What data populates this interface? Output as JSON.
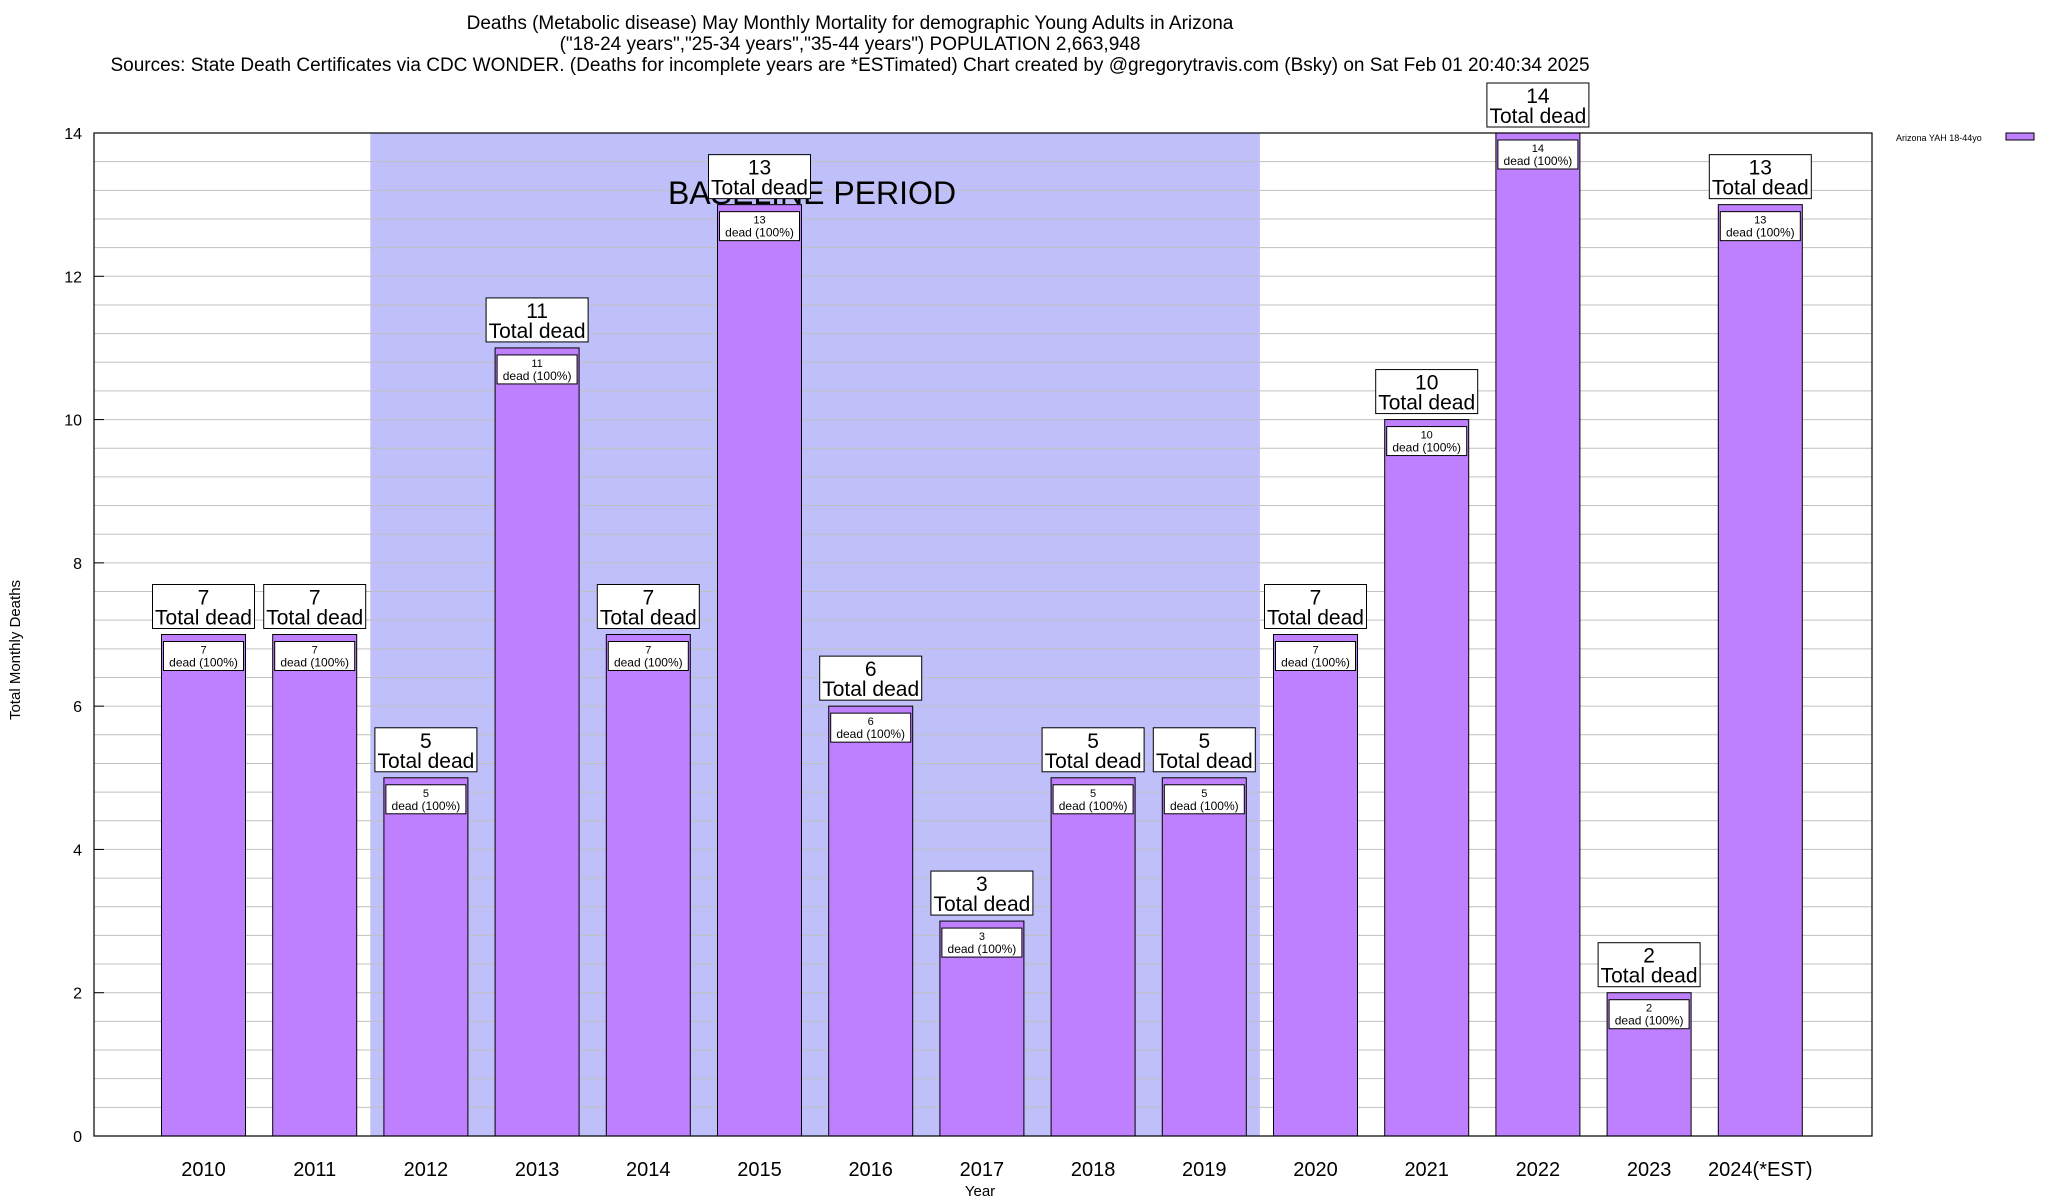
{
  "header": {
    "line1": "Deaths (Metabolic disease) May Monthly Mortality for demographic Young Adults in Arizona",
    "line2": "(\"18-24 years\",\"25-34 years\",\"35-44 years\") POPULATION 2,663,948",
    "line3": "Sources: State Death Certificates via CDC WONDER. (Deaths for incomplete years are *ESTimated)                Chart created by @gregorytravis.com (Bsky) on Sat Feb 01 20:40:34 2025"
  },
  "colors": {
    "bar": "#bf80ff",
    "baseline_shade": "#bfbffa",
    "grid": "#c0c0c0"
  },
  "chart_data": {
    "type": "bar",
    "title": "Deaths (Metabolic disease) May Monthly Mortality for demographic Young Adults in Arizona",
    "xlabel": "Year",
    "ylabel": "Total Monthly Deaths",
    "ylim": [
      0,
      14
    ],
    "yticks": [
      0,
      2,
      4,
      6,
      8,
      10,
      12,
      14
    ],
    "grid": true,
    "legend_position": "top-right",
    "categories": [
      "2010",
      "2011",
      "2012",
      "2013",
      "2014",
      "2015",
      "2016",
      "2017",
      "2018",
      "2019",
      "2020",
      "2021",
      "2022",
      "2023",
      "2024(*EST)"
    ],
    "series": [
      {
        "name": "Arizona YAH 18-44yo",
        "values": [
          7,
          7,
          5,
          11,
          7,
          13,
          6,
          3,
          5,
          5,
          7,
          10,
          14,
          2,
          13
        ]
      }
    ],
    "annotations": {
      "baseline_label": "BASELINE PERIOD",
      "baseline_range": [
        "2012",
        "2019"
      ],
      "total_label": "Total dead",
      "segment_label": "dead (100%)"
    }
  }
}
